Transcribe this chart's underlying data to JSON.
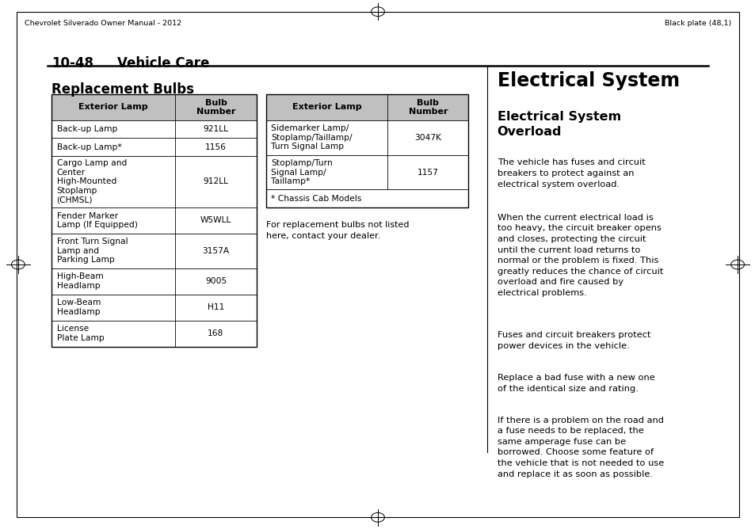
{
  "page_width": 9.54,
  "page_height": 6.68,
  "bg_color": "#ffffff",
  "header_left": "Chevrolet Silverado Owner Manual - 2012",
  "header_right": "Black plate (48,1)",
  "section_label": "10-48",
  "section_title": "Vehicle Care",
  "rb_title": "Replacement Bulbs",
  "left_header": [
    "Exterior Lamp",
    "Bulb\nNumber"
  ],
  "left_rows": [
    [
      "Back-up Lamp",
      "921LL"
    ],
    [
      "Back-up Lamp*",
      "1156"
    ],
    [
      "Cargo Lamp and\nCenter\nHigh-Mounted\nStoplamp\n(CHMSL)",
      "912LL"
    ],
    [
      "Fender Marker\nLamp (If Equipped)",
      "W5WLL"
    ],
    [
      "Front Turn Signal\nLamp and\nParking Lamp",
      "3157A"
    ],
    [
      "High-Beam\nHeadlamp",
      "9005"
    ],
    [
      "Low-Beam\nHeadlamp",
      "H11"
    ],
    [
      "License\nPlate Lamp",
      "168"
    ]
  ],
  "right_header": [
    "Exterior Lamp",
    "Bulb\nNumber"
  ],
  "right_rows": [
    [
      "Sidemarker Lamp/\nStoplamp/Taillamp/\nTurn Signal Lamp",
      "3047K"
    ],
    [
      "Stoplamp/Turn\nSignal Lamp/\nTaillamp*",
      "1157"
    ],
    [
      "* Chassis Cab Models",
      ""
    ]
  ],
  "note_text": "For replacement bulbs not listed\nhere, contact your dealer.",
  "es_title": "Electrical System",
  "es_sub1": "Electrical System\nOverload",
  "es_paragraphs": [
    "The vehicle has fuses and circuit\nbreakers to protect against an\nelectrical system overload.",
    "When the current electrical load is\ntoo heavy, the circuit breaker opens\nand closes, protecting the circuit\nuntil the current load returns to\nnormal or the problem is fixed. This\ngreatly reduces the chance of circuit\noverload and fire caused by\nelectrical problems.",
    "Fuses and circuit breakers protect\npower devices in the vehicle.",
    "Replace a bad fuse with a new one\nof the identical size and rating.",
    "If there is a problem on the road and\na fuse needs to be replaced, the\nsame amperage fuse can be\nborrowed. Choose some feature of\nthe vehicle that is not needed to use\nand replace it as soon as possible."
  ]
}
